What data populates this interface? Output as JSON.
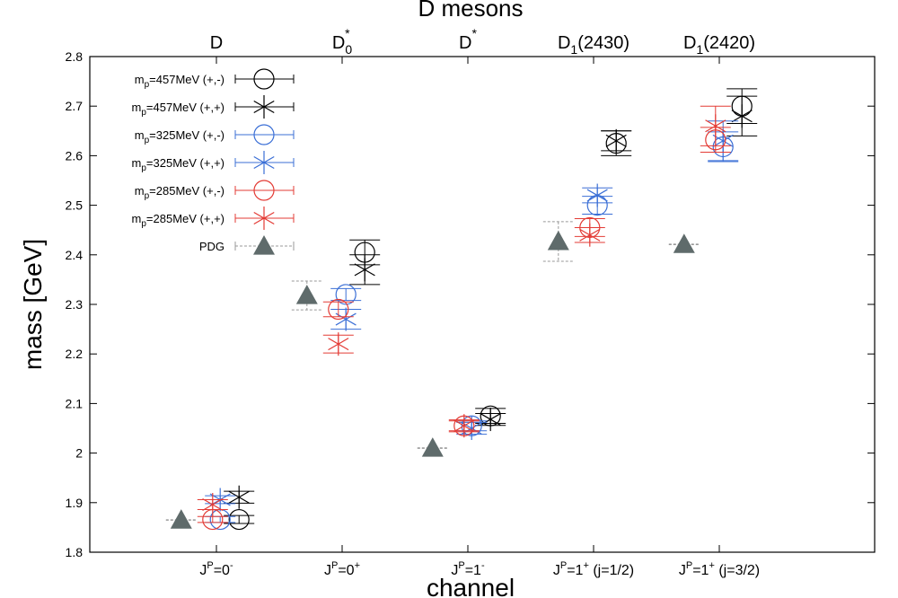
{
  "colors": {
    "black": "#000000",
    "blue": "#3b6fd6",
    "red": "#e33b35",
    "pdg": "#5f6b6b",
    "pdg_err": "#999999"
  },
  "chart_data": {
    "type": "scatter",
    "title": "D mesons",
    "xlabel": "channel",
    "ylabel": "mass [GeV]",
    "ylim": [
      1.8,
      2.8
    ],
    "yticks": [
      "1.8",
      "1.9",
      "2",
      "2.1",
      "2.2",
      "2.3",
      "2.4",
      "2.5",
      "2.6",
      "2.7",
      "2.8"
    ],
    "categories": [
      {
        "main": "J",
        "sup": "P",
        "eq": "=0",
        "sup2": "-",
        "suffix": ""
      },
      {
        "main": "J",
        "sup": "P",
        "eq": "=0",
        "sup2": "+",
        "suffix": ""
      },
      {
        "main": "J",
        "sup": "P",
        "eq": "=1",
        "sup2": "-",
        "suffix": ""
      },
      {
        "main": "J",
        "sup": "P",
        "eq": "=1",
        "sup2": "+",
        "suffix": " (j=1/2)"
      },
      {
        "main": "J",
        "sup": "P",
        "eq": "=1",
        "sup2": "+",
        "suffix": " (j=3/2)"
      }
    ],
    "top_labels": [
      {
        "base": "D",
        "sub": "",
        "sup": "",
        "tail": ""
      },
      {
        "base": "D",
        "sub": "0",
        "sup": "*",
        "tail": ""
      },
      {
        "base": "D",
        "sub": "",
        "sup": "*",
        "tail": ""
      },
      {
        "base": "D",
        "sub": "1",
        "sup": "",
        "tail": "(2430)"
      },
      {
        "base": "D",
        "sub": "1",
        "sup": "",
        "tail": "(2420)"
      }
    ],
    "series": [
      {
        "name": "457MeV (+,-)",
        "legend": {
          "pre": "m",
          "sub": "p",
          "post": "=457MeV  (+,-)"
        },
        "color": "black",
        "marker": "circle",
        "offset": 0.18,
        "values": [
          1.866,
          2.405,
          2.075,
          2.625,
          2.7
        ],
        "errors": [
          0.008,
          0.025,
          0.015,
          0.025,
          0.035
        ]
      },
      {
        "name": "457MeV (+,+)",
        "legend": {
          "pre": "m",
          "sub": "p",
          "post": "=457MeV  (+,+)"
        },
        "color": "black",
        "marker": "star",
        "offset": 0.18,
        "values": [
          1.911,
          2.37,
          2.068,
          2.63,
          2.68
        ],
        "errors": [
          0.012,
          0.03,
          0.012,
          0.02,
          0.04
        ]
      },
      {
        "name": "325MeV (+,-)",
        "legend": {
          "pre": "m",
          "sub": "p",
          "post": "=325MeV  (+,-)"
        },
        "color": "blue",
        "marker": "circle",
        "offset": 0.03,
        "values": [
          1.866,
          2.32,
          2.055,
          2.5,
          2.618
        ],
        "errors": [
          0.006,
          0.012,
          0.01,
          0.018,
          0.03
        ]
      },
      {
        "name": "325MeV (+,+)",
        "legend": {
          "pre": "m",
          "sub": "p",
          "post": "=325MeV  (+,+)"
        },
        "color": "blue",
        "marker": "star",
        "offset": 0.03,
        "values": [
          1.906,
          2.27,
          2.05,
          2.52,
          2.63
        ],
        "errors": [
          0.008,
          0.02,
          0.012,
          0.015,
          0.04
        ]
      },
      {
        "name": "285MeV (+,-)",
        "legend": {
          "pre": "m",
          "sub": "p",
          "post": "=285MeV  (+,-)"
        },
        "color": "red",
        "marker": "circle",
        "offset": -0.03,
        "values": [
          1.866,
          2.29,
          2.055,
          2.455,
          2.632
        ],
        "errors": [
          0.006,
          0.015,
          0.01,
          0.018,
          0.025
        ]
      },
      {
        "name": "285MeV (+,+)",
        "legend": {
          "pre": "m",
          "sub": "p",
          "post": "=285MeV  (+,+)"
        },
        "color": "red",
        "marker": "star",
        "offset": -0.03,
        "values": [
          1.896,
          2.22,
          2.055,
          2.44,
          2.66
        ],
        "errors": [
          0.01,
          0.018,
          0.012,
          0.015,
          0.04
        ]
      },
      {
        "name": "PDG",
        "legend": {
          "pre": "PDG",
          "sub": "",
          "post": ""
        },
        "color": "pdg",
        "marker": "triangle",
        "offset": -0.28,
        "values": [
          1.865,
          2.318,
          2.01,
          2.427,
          2.421
        ],
        "errors": [
          0.0005,
          0.029,
          0.0005,
          0.04,
          0.0006
        ]
      }
    ]
  }
}
